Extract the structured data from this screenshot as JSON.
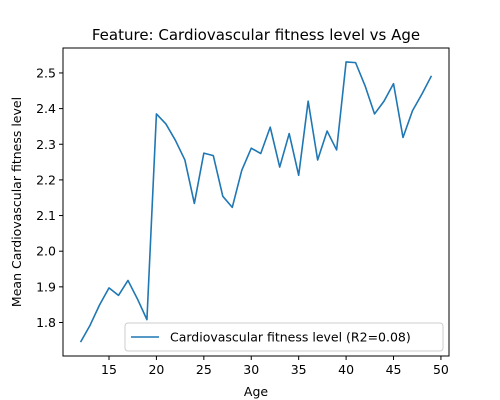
{
  "chart_data": {
    "type": "line",
    "title": "Feature: Cardiovascular fitness level vs Age",
    "xlabel": "Age",
    "ylabel": "Mean Cardiovascular fitness level",
    "xlim": [
      10.15,
      50.85
    ],
    "ylim": [
      1.706,
      2.57
    ],
    "xticks": [
      15,
      20,
      25,
      30,
      35,
      40,
      45,
      50
    ],
    "yticks": [
      1.8,
      1.9,
      2.0,
      2.1,
      2.2,
      2.3,
      2.4,
      2.5
    ],
    "ytick_labels": [
      "1.8",
      "1.9",
      "2.0",
      "2.1",
      "2.2",
      "2.3",
      "2.4",
      "2.5"
    ],
    "grid": false,
    "legend_position": "lower-right",
    "series": [
      {
        "name": "Cardiovascular fitness level (R2=0.08)",
        "color": "#1f77b4",
        "x": [
          12,
          13,
          14,
          15,
          16,
          17,
          18,
          19,
          20,
          21,
          22,
          23,
          24,
          25,
          26,
          27,
          28,
          29,
          30,
          31,
          32,
          33,
          34,
          35,
          36,
          37,
          38,
          39,
          40,
          41,
          42,
          43,
          44,
          45,
          46,
          47,
          48,
          49
        ],
        "y": [
          1.745,
          1.792,
          1.849,
          1.897,
          1.876,
          1.918,
          1.866,
          1.808,
          2.385,
          2.357,
          2.311,
          2.256,
          2.134,
          2.275,
          2.268,
          2.154,
          2.123,
          2.227,
          2.289,
          2.274,
          2.348,
          2.236,
          2.33,
          2.213,
          2.421,
          2.256,
          2.337,
          2.284,
          2.531,
          2.529,
          2.464,
          2.385,
          2.421,
          2.47,
          2.319,
          2.394,
          2.441,
          2.492
        ]
      }
    ]
  }
}
